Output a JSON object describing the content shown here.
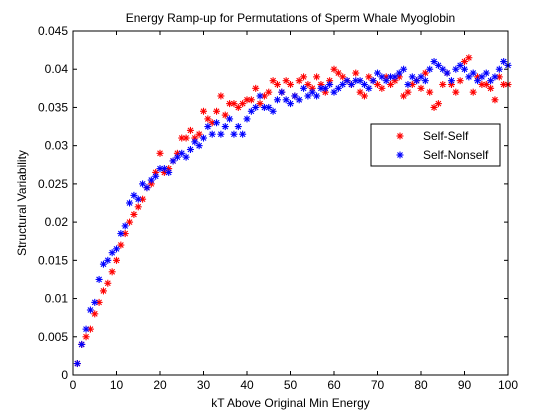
{
  "chart_data": {
    "type": "scatter",
    "title": "Energy Ramp-up for Permutations of Sperm Whale Myoglobin",
    "xlabel": "kT Above Original Min Energy",
    "ylabel": "Structural Variability",
    "xlim": [
      0,
      100
    ],
    "ylim": [
      0,
      0.045
    ],
    "xticks": [
      0,
      10,
      20,
      30,
      40,
      50,
      60,
      70,
      80,
      90,
      100
    ],
    "yticks": [
      0,
      0.005,
      0.01,
      0.015,
      0.02,
      0.025,
      0.03,
      0.035,
      0.04,
      0.045
    ],
    "xtick_labels": [
      "0",
      "10",
      "20",
      "30",
      "40",
      "50",
      "60",
      "70",
      "80",
      "90",
      "100"
    ],
    "ytick_labels": [
      "0",
      "0.005",
      "0.01",
      "0.015",
      "0.02",
      "0.025",
      "0.03",
      "0.035",
      "0.04",
      "0.045"
    ],
    "grid": false,
    "legend_position": "upper-right",
    "series": [
      {
        "name": "Self-Self",
        "color": "#ff0000",
        "marker": "asterisk",
        "x": [
          1,
          2,
          3,
          4,
          5,
          6,
          7,
          8,
          9,
          10,
          11,
          12,
          13,
          14,
          15,
          16,
          17,
          18,
          19,
          20,
          21,
          22,
          23,
          24,
          25,
          26,
          27,
          28,
          29,
          30,
          31,
          32,
          33,
          34,
          35,
          36,
          37,
          38,
          39,
          40,
          41,
          42,
          43,
          44,
          45,
          46,
          47,
          48,
          49,
          50,
          51,
          52,
          53,
          54,
          55,
          56,
          57,
          58,
          59,
          60,
          61,
          62,
          63,
          64,
          65,
          66,
          67,
          68,
          69,
          70,
          71,
          72,
          73,
          74,
          75,
          76,
          77,
          78,
          79,
          80,
          81,
          82,
          83,
          84,
          85,
          86,
          87,
          88,
          89,
          90,
          91,
          92,
          93,
          94,
          95,
          96,
          97,
          98,
          99,
          100
        ],
        "y": [
          0.0015,
          0.004,
          0.005,
          0.006,
          0.008,
          0.0095,
          0.011,
          0.012,
          0.0135,
          0.015,
          0.017,
          0.0185,
          0.02,
          0.021,
          0.022,
          0.023,
          0.0245,
          0.025,
          0.0265,
          0.029,
          0.0265,
          0.027,
          0.028,
          0.029,
          0.031,
          0.031,
          0.032,
          0.031,
          0.0315,
          0.0345,
          0.0335,
          0.033,
          0.0345,
          0.0365,
          0.034,
          0.0355,
          0.0355,
          0.035,
          0.0355,
          0.036,
          0.036,
          0.0375,
          0.0355,
          0.0365,
          0.037,
          0.0385,
          0.038,
          0.037,
          0.0385,
          0.038,
          0.0365,
          0.0385,
          0.039,
          0.038,
          0.0375,
          0.039,
          0.038,
          0.037,
          0.0385,
          0.04,
          0.0395,
          0.039,
          0.0385,
          0.038,
          0.0395,
          0.037,
          0.0365,
          0.039,
          0.0385,
          0.038,
          0.0375,
          0.039,
          0.038,
          0.0385,
          0.039,
          0.0365,
          0.037,
          0.038,
          0.0385,
          0.0375,
          0.0395,
          0.037,
          0.035,
          0.0355,
          0.038,
          0.0395,
          0.038,
          0.037,
          0.0385,
          0.041,
          0.0415,
          0.037,
          0.039,
          0.038,
          0.038,
          0.0375,
          0.036,
          0.039,
          0.038,
          0.038
        ]
      },
      {
        "name": "Self-Nonself",
        "color": "#0000ff",
        "marker": "asterisk",
        "x": [
          1,
          2,
          3,
          4,
          5,
          6,
          7,
          8,
          9,
          10,
          11,
          12,
          13,
          14,
          15,
          16,
          17,
          18,
          19,
          20,
          21,
          22,
          23,
          24,
          25,
          26,
          27,
          28,
          29,
          30,
          31,
          32,
          33,
          34,
          35,
          36,
          37,
          38,
          39,
          40,
          41,
          42,
          43,
          44,
          45,
          46,
          47,
          48,
          49,
          50,
          51,
          52,
          53,
          54,
          55,
          56,
          57,
          58,
          59,
          60,
          61,
          62,
          63,
          64,
          65,
          66,
          67,
          68,
          69,
          70,
          71,
          72,
          73,
          74,
          75,
          76,
          77,
          78,
          79,
          80,
          81,
          82,
          83,
          84,
          85,
          86,
          87,
          88,
          89,
          90,
          91,
          92,
          93,
          94,
          95,
          96,
          97,
          98,
          99,
          100
        ],
        "y": [
          0.0015,
          0.004,
          0.006,
          0.0085,
          0.0095,
          0.0125,
          0.0145,
          0.015,
          0.016,
          0.0165,
          0.0185,
          0.0195,
          0.0225,
          0.0235,
          0.023,
          0.025,
          0.0245,
          0.0255,
          0.026,
          0.027,
          0.027,
          0.0265,
          0.028,
          0.0285,
          0.029,
          0.0285,
          0.0295,
          0.0305,
          0.03,
          0.031,
          0.0325,
          0.0315,
          0.033,
          0.0315,
          0.0325,
          0.0335,
          0.0315,
          0.0325,
          0.0315,
          0.0335,
          0.0345,
          0.035,
          0.0365,
          0.035,
          0.035,
          0.0345,
          0.036,
          0.037,
          0.036,
          0.0355,
          0.0365,
          0.036,
          0.0375,
          0.0365,
          0.037,
          0.0365,
          0.0375,
          0.0375,
          0.038,
          0.037,
          0.0375,
          0.038,
          0.0385,
          0.038,
          0.0385,
          0.0385,
          0.038,
          0.0375,
          0.0385,
          0.0395,
          0.039,
          0.0385,
          0.039,
          0.039,
          0.0395,
          0.04,
          0.038,
          0.039,
          0.0385,
          0.039,
          0.0385,
          0.04,
          0.041,
          0.0405,
          0.04,
          0.0395,
          0.0385,
          0.04,
          0.0405,
          0.04,
          0.039,
          0.0395,
          0.0385,
          0.039,
          0.0395,
          0.0385,
          0.039,
          0.04,
          0.041,
          0.0405
        ]
      }
    ]
  }
}
